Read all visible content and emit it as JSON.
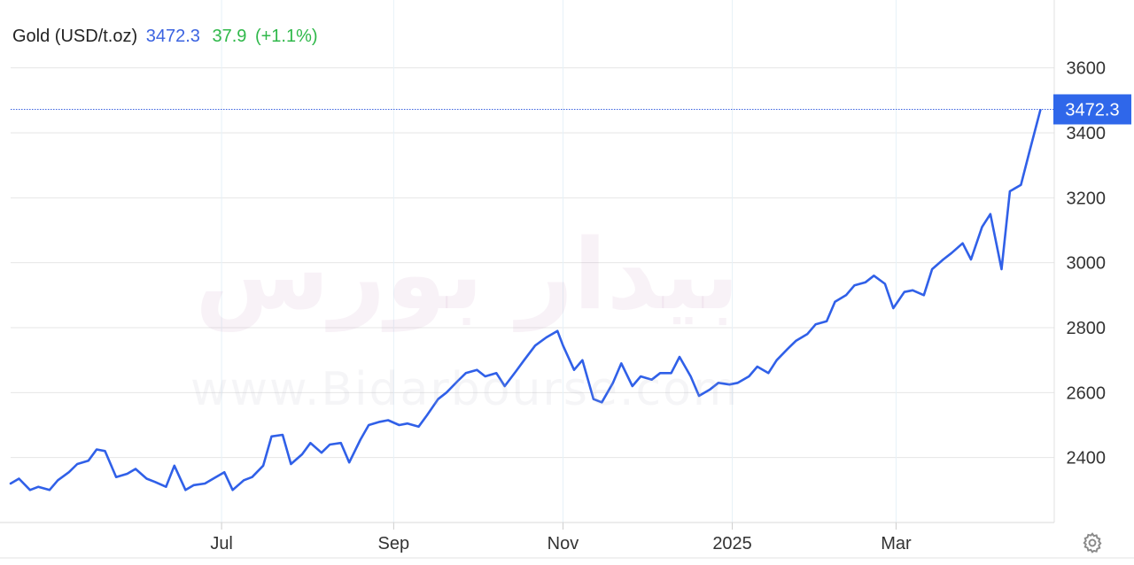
{
  "header": {
    "title": "Gold (USD/t.oz)",
    "price": "3472.3",
    "change": "37.9",
    "change_pct": "(+1.1%)"
  },
  "watermark": {
    "text_fa": "بیدار بورس",
    "text_en": "www.Bidarbourse.com"
  },
  "colors": {
    "line": "#3060e8",
    "price_tag": "#2f67ea",
    "up": "#2fb84a",
    "grid": "#e6e6e6"
  },
  "icons": {
    "settings": "gear-icon"
  },
  "chart_data": {
    "type": "line",
    "title": "Gold (USD/t.oz)",
    "last_value": 3472.3,
    "last_value_label": "3472.3",
    "ylim": [
      2200,
      3700
    ],
    "y_ticks": [
      2400,
      2600,
      2800,
      3000,
      3200,
      3400,
      3600
    ],
    "y_tick_labels": [
      "2400",
      "2600",
      "2800",
      "3000",
      "3200",
      "3400",
      "3600"
    ],
    "x_ticks": [
      {
        "label": "Jul",
        "date": "2024-07-01"
      },
      {
        "label": "Sep",
        "date": "2024-09-01"
      },
      {
        "label": "Nov",
        "date": "2024-11-01"
      },
      {
        "label": "2025",
        "date": "2025-01-01"
      },
      {
        "label": "Mar",
        "date": "2025-03-01"
      }
    ],
    "xlim": [
      "2024-04-16",
      "2025-04-27"
    ],
    "grid": true,
    "series": [
      {
        "x": [
          "2024-04-16",
          "2024-04-19",
          "2024-04-23",
          "2024-04-26",
          "2024-04-30",
          "2024-05-03",
          "2024-05-07",
          "2024-05-10",
          "2024-05-14",
          "2024-05-17",
          "2024-05-20",
          "2024-05-24",
          "2024-05-28",
          "2024-05-31",
          "2024-06-04",
          "2024-06-07",
          "2024-06-11",
          "2024-06-14",
          "2024-06-18",
          "2024-06-21",
          "2024-06-25",
          "2024-06-28",
          "2024-07-02",
          "2024-07-05",
          "2024-07-09",
          "2024-07-12",
          "2024-07-16",
          "2024-07-19",
          "2024-07-23",
          "2024-07-26",
          "2024-07-30",
          "2024-08-02",
          "2024-08-06",
          "2024-08-09",
          "2024-08-13",
          "2024-08-16",
          "2024-08-20",
          "2024-08-23",
          "2024-08-27",
          "2024-08-30",
          "2024-09-03",
          "2024-09-06",
          "2024-09-10",
          "2024-09-13",
          "2024-09-17",
          "2024-09-20",
          "2024-09-24",
          "2024-09-27",
          "2024-10-01",
          "2024-10-04",
          "2024-10-08",
          "2024-10-11",
          "2024-10-15",
          "2024-10-18",
          "2024-10-22",
          "2024-10-26",
          "2024-10-30",
          "2024-11-01",
          "2024-11-05",
          "2024-11-08",
          "2024-11-12",
          "2024-11-15",
          "2024-11-19",
          "2024-11-22",
          "2024-11-26",
          "2024-11-29",
          "2024-12-03",
          "2024-12-06",
          "2024-12-10",
          "2024-12-13",
          "2024-12-17",
          "2024-12-20",
          "2024-12-24",
          "2024-12-27",
          "2024-12-31",
          "2025-01-03",
          "2025-01-07",
          "2025-01-10",
          "2025-01-14",
          "2025-01-17",
          "2025-01-21",
          "2025-01-24",
          "2025-01-28",
          "2025-01-31",
          "2025-02-04",
          "2025-02-07",
          "2025-02-11",
          "2025-02-14",
          "2025-02-18",
          "2025-02-21",
          "2025-02-25",
          "2025-02-28",
          "2025-03-04",
          "2025-03-07",
          "2025-03-11",
          "2025-03-14",
          "2025-03-18",
          "2025-03-21",
          "2025-03-25",
          "2025-03-28",
          "2025-04-01",
          "2025-04-04",
          "2025-04-08",
          "2025-04-11",
          "2025-04-15",
          "2025-04-18",
          "2025-04-22"
        ],
        "values": [
          2320,
          2335,
          2300,
          2310,
          2300,
          2330,
          2355,
          2380,
          2390,
          2425,
          2420,
          2340,
          2350,
          2365,
          2335,
          2325,
          2310,
          2375,
          2300,
          2315,
          2320,
          2335,
          2355,
          2300,
          2330,
          2340,
          2375,
          2465,
          2470,
          2380,
          2410,
          2445,
          2415,
          2440,
          2445,
          2385,
          2455,
          2500,
          2510,
          2515,
          2500,
          2505,
          2495,
          2530,
          2580,
          2600,
          2635,
          2660,
          2670,
          2650,
          2660,
          2620,
          2665,
          2700,
          2745,
          2770,
          2790,
          2745,
          2670,
          2700,
          2580,
          2570,
          2630,
          2690,
          2620,
          2650,
          2640,
          2660,
          2660,
          2710,
          2650,
          2590,
          2610,
          2630,
          2625,
          2630,
          2650,
          2680,
          2660,
          2700,
          2735,
          2760,
          2780,
          2810,
          2820,
          2880,
          2900,
          2930,
          2940,
          2960,
          2935,
          2860,
          2910,
          2915,
          2900,
          2980,
          3010,
          3030,
          3060,
          3010,
          3110,
          3150,
          2980,
          3220,
          3240,
          3340,
          3470
        ]
      }
    ]
  }
}
